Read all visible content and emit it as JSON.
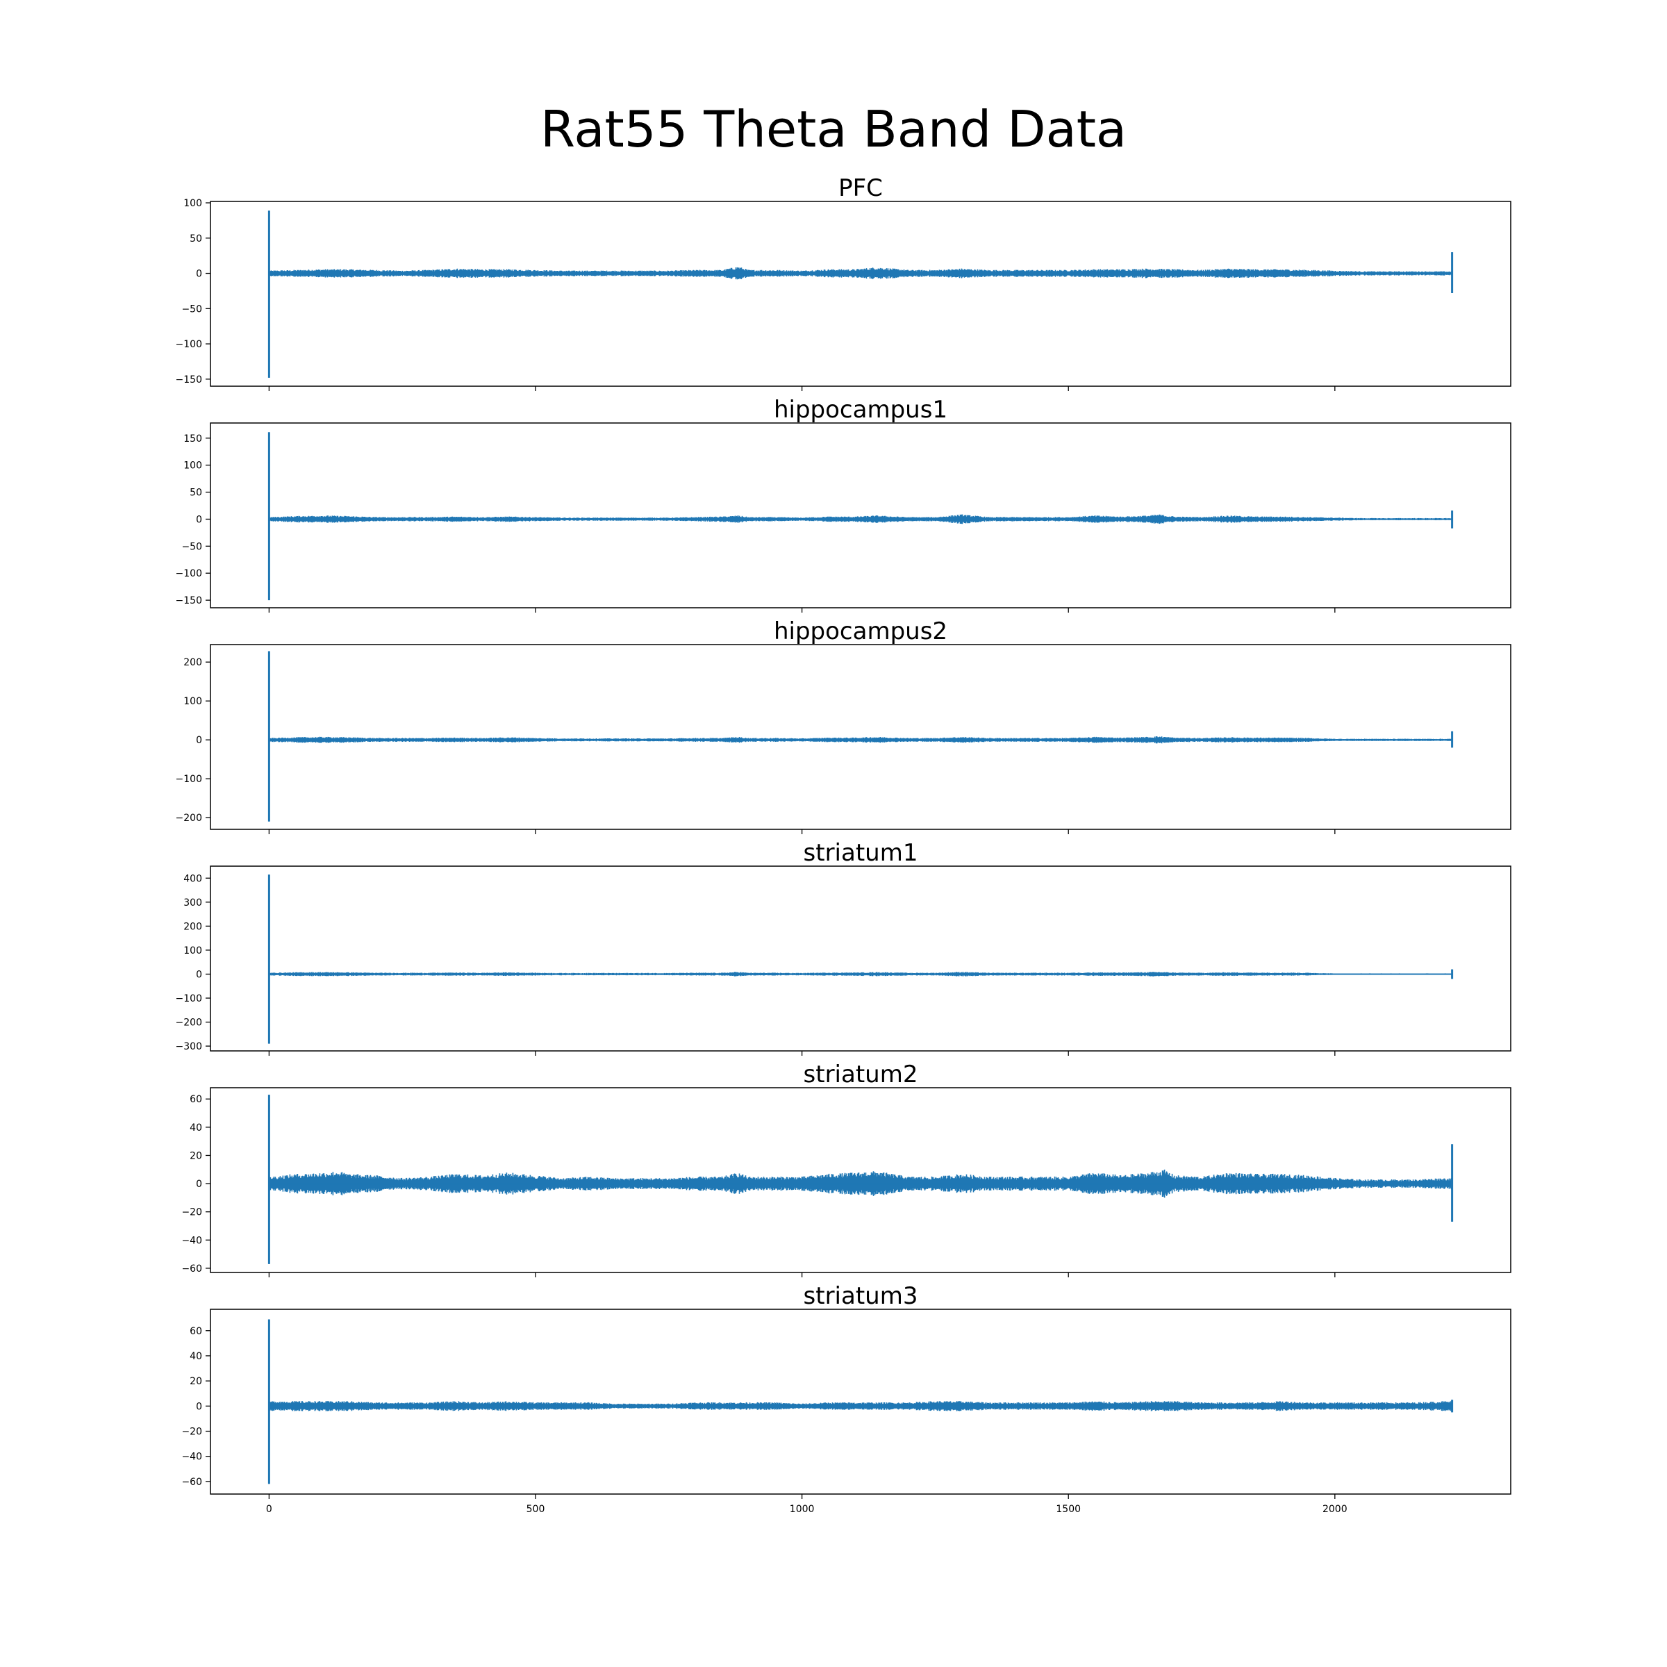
{
  "figure": {
    "title": "Rat55 Theta Band Data"
  },
  "colors": {
    "line": "#1f77b4",
    "axes": "#000000",
    "background": "#ffffff"
  },
  "chart_data": [
    {
      "type": "line",
      "title": "PFC",
      "xlabel": "",
      "ylabel": "",
      "xlim": [
        -110,
        2330
      ],
      "ylim": [
        -160,
        102
      ],
      "xticks": [
        0,
        500,
        1000,
        1500,
        2000
      ],
      "xtick_labels_visible": false,
      "yticks": [
        100,
        50,
        0,
        -50,
        -100,
        -150
      ],
      "ytick_labels": [
        "100",
        "50",
        "0",
        "−50",
        "−100",
        "−150"
      ],
      "grid": false,
      "x_range": [
        0,
        2220
      ],
      "spike_start": [
        -148,
        89
      ],
      "spike_end": [
        -28,
        30
      ],
      "envelope": [
        [
          0,
          4
        ],
        [
          50,
          5
        ],
        [
          100,
          6
        ],
        [
          150,
          6
        ],
        [
          200,
          5
        ],
        [
          250,
          4
        ],
        [
          300,
          5
        ],
        [
          350,
          7
        ],
        [
          400,
          6
        ],
        [
          450,
          6
        ],
        [
          500,
          5
        ],
        [
          550,
          4
        ],
        [
          600,
          4
        ],
        [
          650,
          4
        ],
        [
          700,
          4
        ],
        [
          750,
          4
        ],
        [
          800,
          5
        ],
        [
          850,
          5
        ],
        [
          880,
          10
        ],
        [
          900,
          5
        ],
        [
          950,
          5
        ],
        [
          1000,
          4
        ],
        [
          1050,
          6
        ],
        [
          1100,
          6
        ],
        [
          1140,
          9
        ],
        [
          1200,
          5
        ],
        [
          1250,
          5
        ],
        [
          1300,
          7
        ],
        [
          1350,
          5
        ],
        [
          1400,
          5
        ],
        [
          1450,
          5
        ],
        [
          1500,
          5
        ],
        [
          1550,
          6
        ],
        [
          1600,
          6
        ],
        [
          1650,
          7
        ],
        [
          1700,
          6
        ],
        [
          1750,
          5
        ],
        [
          1800,
          7
        ],
        [
          1850,
          6
        ],
        [
          1900,
          6
        ],
        [
          1950,
          5
        ],
        [
          2000,
          4
        ],
        [
          2050,
          3
        ],
        [
          2100,
          3
        ],
        [
          2150,
          3
        ],
        [
          2200,
          3
        ],
        [
          2220,
          3
        ]
      ]
    },
    {
      "type": "line",
      "title": "hippocampus1",
      "xlabel": "",
      "ylabel": "",
      "xlim": [
        -110,
        2330
      ],
      "ylim": [
        -164,
        178
      ],
      "xticks": [
        0,
        500,
        1000,
        1500,
        2000
      ],
      "xtick_labels_visible": false,
      "yticks": [
        150,
        100,
        50,
        0,
        -50,
        -100,
        -150
      ],
      "ytick_labels": [
        "150",
        "100",
        "50",
        "0",
        "−50",
        "−100",
        "−150"
      ],
      "grid": false,
      "x_range": [
        0,
        2220
      ],
      "spike_start": [
        -150,
        161
      ],
      "spike_end": [
        -17,
        16
      ],
      "envelope": [
        [
          0,
          4
        ],
        [
          50,
          6
        ],
        [
          100,
          7
        ],
        [
          150,
          6
        ],
        [
          200,
          4
        ],
        [
          250,
          4
        ],
        [
          300,
          4
        ],
        [
          350,
          5
        ],
        [
          400,
          4
        ],
        [
          450,
          5
        ],
        [
          500,
          4
        ],
        [
          550,
          3
        ],
        [
          600,
          3
        ],
        [
          650,
          3
        ],
        [
          700,
          3
        ],
        [
          750,
          3
        ],
        [
          800,
          4
        ],
        [
          850,
          5
        ],
        [
          880,
          7
        ],
        [
          900,
          4
        ],
        [
          950,
          4
        ],
        [
          1000,
          3
        ],
        [
          1050,
          5
        ],
        [
          1100,
          5
        ],
        [
          1140,
          7
        ],
        [
          1200,
          4
        ],
        [
          1250,
          4
        ],
        [
          1300,
          9
        ],
        [
          1350,
          4
        ],
        [
          1400,
          4
        ],
        [
          1450,
          4
        ],
        [
          1500,
          4
        ],
        [
          1550,
          7
        ],
        [
          1600,
          5
        ],
        [
          1650,
          7
        ],
        [
          1670,
          9
        ],
        [
          1700,
          5
        ],
        [
          1750,
          4
        ],
        [
          1800,
          7
        ],
        [
          1850,
          5
        ],
        [
          1900,
          5
        ],
        [
          1950,
          4
        ],
        [
          2000,
          3
        ],
        [
          2050,
          2
        ],
        [
          2100,
          2
        ],
        [
          2150,
          2
        ],
        [
          2200,
          2
        ],
        [
          2220,
          2
        ]
      ]
    },
    {
      "type": "line",
      "title": "hippocampus2",
      "xlabel": "",
      "ylabel": "",
      "xlim": [
        -110,
        2330
      ],
      "ylim": [
        -230,
        245
      ],
      "xticks": [
        0,
        500,
        1000,
        1500,
        2000
      ],
      "xtick_labels_visible": false,
      "yticks": [
        200,
        100,
        0,
        -100,
        -200
      ],
      "ytick_labels": [
        "200",
        "100",
        "0",
        "−100",
        "−200"
      ],
      "grid": false,
      "x_range": [
        0,
        2220
      ],
      "spike_start": [
        -210,
        228
      ],
      "spike_end": [
        -20,
        22
      ],
      "envelope": [
        [
          0,
          5
        ],
        [
          50,
          7
        ],
        [
          100,
          8
        ],
        [
          150,
          7
        ],
        [
          200,
          5
        ],
        [
          250,
          5
        ],
        [
          300,
          5
        ],
        [
          350,
          6
        ],
        [
          400,
          5
        ],
        [
          450,
          7
        ],
        [
          500,
          5
        ],
        [
          550,
          4
        ],
        [
          600,
          4
        ],
        [
          650,
          4
        ],
        [
          700,
          4
        ],
        [
          750,
          4
        ],
        [
          800,
          5
        ],
        [
          850,
          5
        ],
        [
          880,
          8
        ],
        [
          900,
          5
        ],
        [
          950,
          5
        ],
        [
          1000,
          4
        ],
        [
          1050,
          6
        ],
        [
          1100,
          6
        ],
        [
          1140,
          8
        ],
        [
          1200,
          5
        ],
        [
          1250,
          5
        ],
        [
          1300,
          8
        ],
        [
          1350,
          5
        ],
        [
          1400,
          5
        ],
        [
          1450,
          5
        ],
        [
          1500,
          5
        ],
        [
          1550,
          8
        ],
        [
          1600,
          6
        ],
        [
          1650,
          8
        ],
        [
          1670,
          10
        ],
        [
          1700,
          6
        ],
        [
          1750,
          5
        ],
        [
          1800,
          7
        ],
        [
          1850,
          6
        ],
        [
          1900,
          6
        ],
        [
          1950,
          5
        ],
        [
          2000,
          3
        ],
        [
          2050,
          3
        ],
        [
          2100,
          3
        ],
        [
          2150,
          3
        ],
        [
          2200,
          3
        ],
        [
          2220,
          3
        ]
      ]
    },
    {
      "type": "line",
      "title": "striatum1",
      "xlabel": "",
      "ylabel": "",
      "xlim": [
        -110,
        2330
      ],
      "ylim": [
        -320,
        450
      ],
      "xticks": [
        0,
        500,
        1000,
        1500,
        2000
      ],
      "xtick_labels_visible": false,
      "yticks": [
        400,
        300,
        200,
        100,
        0,
        -100,
        -200,
        -300
      ],
      "ytick_labels": [
        "400",
        "300",
        "200",
        "100",
        "0",
        "−100",
        "−200",
        "−300"
      ],
      "grid": false,
      "x_range": [
        0,
        2220
      ],
      "spike_start": [
        -290,
        415
      ],
      "spike_end": [
        -20,
        20
      ],
      "envelope": [
        [
          0,
          6
        ],
        [
          50,
          8
        ],
        [
          100,
          9
        ],
        [
          150,
          8
        ],
        [
          200,
          6
        ],
        [
          250,
          6
        ],
        [
          300,
          6
        ],
        [
          350,
          7
        ],
        [
          400,
          6
        ],
        [
          450,
          8
        ],
        [
          500,
          6
        ],
        [
          550,
          5
        ],
        [
          600,
          5
        ],
        [
          650,
          5
        ],
        [
          700,
          5
        ],
        [
          750,
          5
        ],
        [
          800,
          6
        ],
        [
          850,
          6
        ],
        [
          880,
          10
        ],
        [
          900,
          6
        ],
        [
          950,
          6
        ],
        [
          1000,
          5
        ],
        [
          1050,
          7
        ],
        [
          1100,
          7
        ],
        [
          1140,
          9
        ],
        [
          1200,
          6
        ],
        [
          1250,
          6
        ],
        [
          1300,
          10
        ],
        [
          1350,
          6
        ],
        [
          1400,
          6
        ],
        [
          1450,
          6
        ],
        [
          1500,
          6
        ],
        [
          1550,
          8
        ],
        [
          1600,
          7
        ],
        [
          1650,
          9
        ],
        [
          1670,
          10
        ],
        [
          1700,
          7
        ],
        [
          1750,
          6
        ],
        [
          1800,
          8
        ],
        [
          1850,
          7
        ],
        [
          1900,
          7
        ],
        [
          1950,
          6
        ],
        [
          2000,
          3
        ],
        [
          2050,
          3
        ],
        [
          2100,
          3
        ],
        [
          2150,
          3
        ],
        [
          2200,
          3
        ],
        [
          2220,
          3
        ]
      ]
    },
    {
      "type": "line",
      "title": "striatum2",
      "xlabel": "",
      "ylabel": "",
      "xlim": [
        -110,
        2330
      ],
      "ylim": [
        -63,
        68
      ],
      "xticks": [
        0,
        500,
        1000,
        1500,
        2000
      ],
      "xtick_labels_visible": false,
      "yticks": [
        60,
        40,
        20,
        0,
        -20,
        -40,
        -60
      ],
      "ytick_labels": [
        "60",
        "40",
        "20",
        "0",
        "−20",
        "−40",
        "−60"
      ],
      "grid": false,
      "x_range": [
        0,
        2220
      ],
      "spike_start": [
        -57,
        63
      ],
      "spike_end": [
        -27,
        28
      ],
      "envelope": [
        [
          0,
          5
        ],
        [
          50,
          7
        ],
        [
          100,
          8
        ],
        [
          130,
          9
        ],
        [
          150,
          7
        ],
        [
          200,
          6
        ],
        [
          250,
          4
        ],
        [
          300,
          5
        ],
        [
          350,
          7
        ],
        [
          400,
          6
        ],
        [
          450,
          8
        ],
        [
          500,
          6
        ],
        [
          550,
          4
        ],
        [
          600,
          5
        ],
        [
          650,
          4
        ],
        [
          700,
          4
        ],
        [
          750,
          4
        ],
        [
          800,
          5
        ],
        [
          850,
          5
        ],
        [
          880,
          8
        ],
        [
          900,
          5
        ],
        [
          950,
          5
        ],
        [
          1000,
          5
        ],
        [
          1050,
          7
        ],
        [
          1100,
          8
        ],
        [
          1140,
          9
        ],
        [
          1200,
          5
        ],
        [
          1250,
          5
        ],
        [
          1300,
          7
        ],
        [
          1350,
          5
        ],
        [
          1400,
          5
        ],
        [
          1450,
          5
        ],
        [
          1500,
          5
        ],
        [
          1550,
          8
        ],
        [
          1600,
          6
        ],
        [
          1650,
          8
        ],
        [
          1680,
          10
        ],
        [
          1700,
          6
        ],
        [
          1750,
          5
        ],
        [
          1800,
          8
        ],
        [
          1850,
          7
        ],
        [
          1900,
          7
        ],
        [
          1950,
          6
        ],
        [
          2000,
          4
        ],
        [
          2050,
          3
        ],
        [
          2100,
          3
        ],
        [
          2150,
          3
        ],
        [
          2200,
          4
        ],
        [
          2220,
          4
        ]
      ]
    },
    {
      "type": "line",
      "title": "striatum3",
      "xlabel": "",
      "ylabel": "",
      "xlim": [
        -110,
        2330
      ],
      "ylim": [
        -70,
        77
      ],
      "xticks": [
        0,
        500,
        1000,
        1500,
        2000
      ],
      "xtick_labels": [
        "0",
        "500",
        "1000",
        "1500",
        "2000"
      ],
      "xtick_labels_visible": true,
      "yticks": [
        60,
        40,
        20,
        0,
        -20,
        -40,
        -60
      ],
      "ytick_labels": [
        "60",
        "40",
        "20",
        "0",
        "−20",
        "−40",
        "−60"
      ],
      "grid": false,
      "x_range": [
        0,
        2220
      ],
      "spike_start": [
        -62,
        69
      ],
      "spike_end": [
        -5,
        5
      ],
      "envelope": [
        [
          0,
          4
        ],
        [
          50,
          4
        ],
        [
          100,
          4
        ],
        [
          150,
          4
        ],
        [
          200,
          3
        ],
        [
          250,
          3
        ],
        [
          300,
          3
        ],
        [
          350,
          4
        ],
        [
          400,
          3
        ],
        [
          450,
          4
        ],
        [
          500,
          3
        ],
        [
          550,
          3
        ],
        [
          600,
          3
        ],
        [
          650,
          2
        ],
        [
          700,
          2
        ],
        [
          750,
          2
        ],
        [
          800,
          3
        ],
        [
          850,
          3
        ],
        [
          900,
          3
        ],
        [
          950,
          3
        ],
        [
          1000,
          2
        ],
        [
          1050,
          3
        ],
        [
          1100,
          3
        ],
        [
          1150,
          3
        ],
        [
          1200,
          3
        ],
        [
          1250,
          4
        ],
        [
          1300,
          4
        ],
        [
          1350,
          3
        ],
        [
          1400,
          3
        ],
        [
          1450,
          3
        ],
        [
          1500,
          3
        ],
        [
          1550,
          4
        ],
        [
          1600,
          3
        ],
        [
          1650,
          4
        ],
        [
          1700,
          4
        ],
        [
          1750,
          3
        ],
        [
          1800,
          3
        ],
        [
          1850,
          3
        ],
        [
          1900,
          4
        ],
        [
          1950,
          3
        ],
        [
          2000,
          3
        ],
        [
          2050,
          3
        ],
        [
          2100,
          3
        ],
        [
          2150,
          3
        ],
        [
          2200,
          4
        ],
        [
          2220,
          4
        ]
      ]
    }
  ]
}
